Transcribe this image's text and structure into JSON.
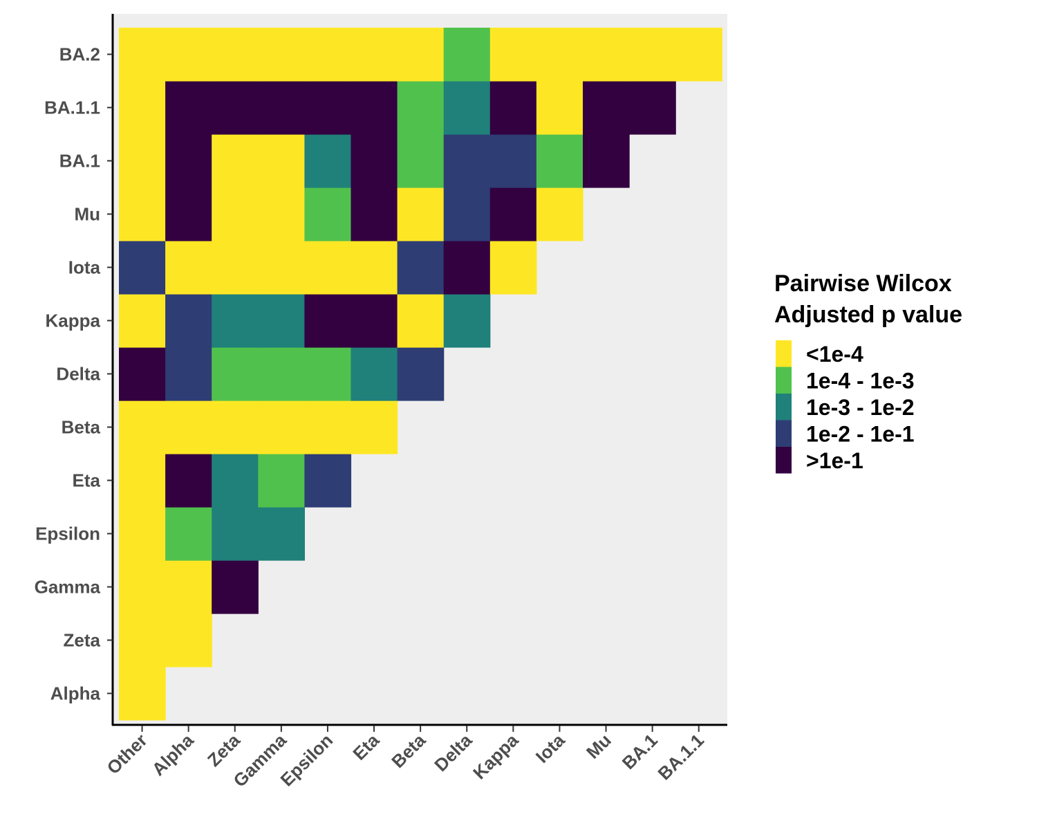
{
  "chart_data": {
    "type": "heatmap",
    "x_categories": [
      "Other",
      "Alpha",
      "Zeta",
      "Gamma",
      "Epsilon",
      "Eta",
      "Beta",
      "Delta",
      "Kappa",
      "Iota",
      "Mu",
      "BA.1",
      "BA.1.1"
    ],
    "y_categories": [
      "Alpha",
      "Zeta",
      "Gamma",
      "Epsilon",
      "Eta",
      "Beta",
      "Delta",
      "Kappa",
      "Iota",
      "Mu",
      "BA.1",
      "BA.1.1",
      "BA.2"
    ],
    "cells": [
      [
        "<1e-4",
        null,
        null,
        null,
        null,
        null,
        null,
        null,
        null,
        null,
        null,
        null,
        null
      ],
      [
        "<1e-4",
        "<1e-4",
        null,
        null,
        null,
        null,
        null,
        null,
        null,
        null,
        null,
        null,
        null
      ],
      [
        "<1e-4",
        "<1e-4",
        ">1e-1",
        null,
        null,
        null,
        null,
        null,
        null,
        null,
        null,
        null,
        null
      ],
      [
        "<1e-4",
        "1e-4 - 1e-3",
        "1e-3 - 1e-2",
        "1e-3 - 1e-2",
        null,
        null,
        null,
        null,
        null,
        null,
        null,
        null,
        null
      ],
      [
        "<1e-4",
        ">1e-1",
        "1e-3 - 1e-2",
        "1e-4 - 1e-3",
        "1e-2 - 1e-1",
        null,
        null,
        null,
        null,
        null,
        null,
        null,
        null
      ],
      [
        "<1e-4",
        "<1e-4",
        "<1e-4",
        "<1e-4",
        "<1e-4",
        "<1e-4",
        null,
        null,
        null,
        null,
        null,
        null,
        null
      ],
      [
        ">1e-1",
        "1e-2 - 1e-1",
        "1e-4 - 1e-3",
        "1e-4 - 1e-3",
        "1e-4 - 1e-3",
        "1e-3 - 1e-2",
        "1e-2 - 1e-1",
        null,
        null,
        null,
        null,
        null,
        null
      ],
      [
        "<1e-4",
        "1e-2 - 1e-1",
        "1e-3 - 1e-2",
        "1e-3 - 1e-2",
        ">1e-1",
        ">1e-1",
        "<1e-4",
        "1e-3 - 1e-2",
        null,
        null,
        null,
        null,
        null
      ],
      [
        "1e-2 - 1e-1",
        "<1e-4",
        "<1e-4",
        "<1e-4",
        "<1e-4",
        "<1e-4",
        "1e-2 - 1e-1",
        ">1e-1",
        "<1e-4",
        null,
        null,
        null,
        null
      ],
      [
        "<1e-4",
        ">1e-1",
        "<1e-4",
        "<1e-4",
        "1e-4 - 1e-3",
        ">1e-1",
        "<1e-4",
        "1e-2 - 1e-1",
        ">1e-1",
        "<1e-4",
        null,
        null,
        null
      ],
      [
        "<1e-4",
        ">1e-1",
        "<1e-4",
        "<1e-4",
        "1e-3 - 1e-2",
        ">1e-1",
        "1e-4 - 1e-3",
        "1e-2 - 1e-1",
        "1e-2 - 1e-1",
        "1e-4 - 1e-3",
        ">1e-1",
        null,
        null
      ],
      [
        "<1e-4",
        ">1e-1",
        ">1e-1",
        ">1e-1",
        ">1e-1",
        ">1e-1",
        "1e-4 - 1e-3",
        "1e-3 - 1e-2",
        ">1e-1",
        "<1e-4",
        ">1e-1",
        ">1e-1",
        null
      ],
      [
        "<1e-4",
        "<1e-4",
        "<1e-4",
        "<1e-4",
        "<1e-4",
        "<1e-4",
        "<1e-4",
        "1e-4 - 1e-3",
        "<1e-4",
        "<1e-4",
        "<1e-4",
        "<1e-4",
        "<1e-4"
      ]
    ],
    "legend": {
      "title_lines": [
        "Pairwise Wilcox",
        "Adjusted p value"
      ],
      "placement": "right",
      "entries": [
        {
          "label": "<1e-4",
          "color": "#FDE725"
        },
        {
          "label": "1e-4 - 1e-3",
          "color": "#51C14E"
        },
        {
          "label": "1e-3 - 1e-2",
          "color": "#20807A"
        },
        {
          "label": "1e-2 - 1e-1",
          "color": "#2E3D74"
        },
        {
          "label": ">1e-1",
          "color": "#330040"
        }
      ]
    },
    "panel_background": "#EEEEEE",
    "xlabel": "",
    "ylabel": ""
  }
}
